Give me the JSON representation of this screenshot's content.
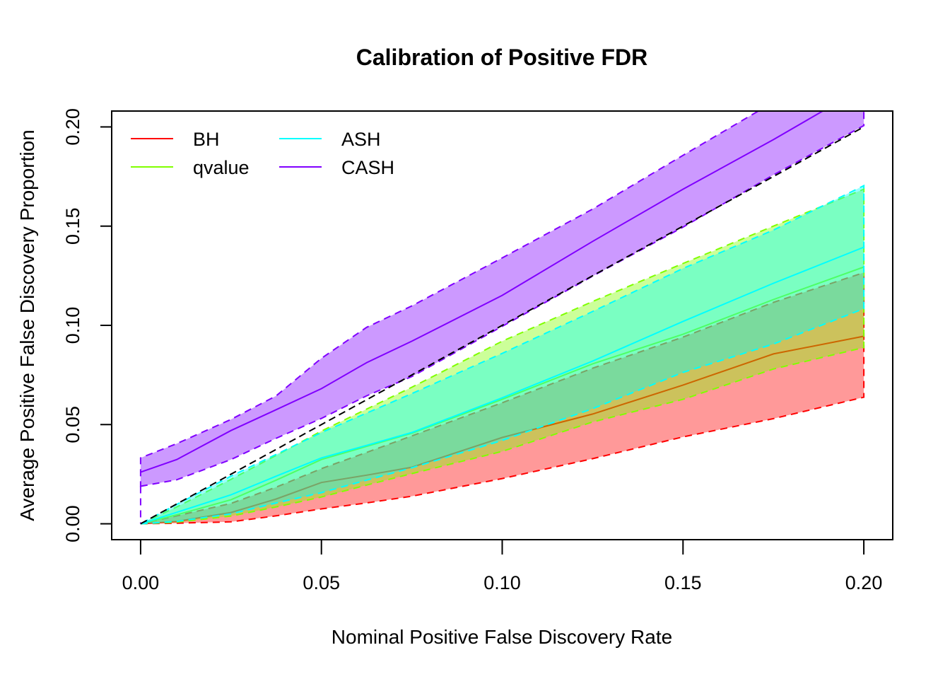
{
  "chart_data": {
    "type": "area",
    "title": "Calibration of Positive FDR",
    "xlabel": "Nominal Positive False Discovery Rate",
    "ylabel": "Average Positive False Discovery Proportion",
    "xlim": [
      -0.008,
      0.208
    ],
    "ylim": [
      -0.008,
      0.208
    ],
    "grid": false,
    "xticks": {
      "values": [
        0,
        0.05,
        0.1,
        0.15,
        0.2
      ],
      "labels": [
        "0.00",
        "0.05",
        "0.10",
        "0.15",
        "0.20"
      ]
    },
    "yticks": {
      "values": [
        0,
        0.05,
        0.1,
        0.15,
        0.2
      ],
      "labels": [
        "0.00",
        "0.05",
        "0.10",
        "0.15",
        "0.20"
      ]
    },
    "legend": {
      "position": "top-left",
      "columns": 2,
      "entries": [
        "BH",
        "qvalue",
        "ASH",
        "CASH"
      ]
    },
    "reference_line": {
      "slope": 1,
      "intercept": 0,
      "color": "#000000",
      "style": "dashed"
    },
    "x": [
      0,
      0.01,
      0.025,
      0.0375,
      0.05,
      0.0625,
      0.075,
      0.1,
      0.125,
      0.15,
      0.175,
      0.2
    ],
    "series": [
      {
        "name": "BH",
        "color": "#FF0000",
        "mean": [
          0,
          0.0012,
          0.0057,
          0.0125,
          0.0208,
          0.0245,
          0.0285,
          0.0435,
          0.0553,
          0.0699,
          0.0856,
          0.0945
        ],
        "lower": [
          0,
          0.0003,
          0.001,
          0.004,
          0.0075,
          0.0105,
          0.0139,
          0.0228,
          0.0328,
          0.0438,
          0.053,
          0.0638
        ],
        "upper": [
          0,
          0.004,
          0.0103,
          0.0185,
          0.0278,
          0.036,
          0.0443,
          0.061,
          0.0784,
          0.0941,
          0.1116,
          0.1266
        ]
      },
      {
        "name": "qvalue",
        "color": "#80FF00",
        "mean": [
          0,
          0.0045,
          0.0121,
          0.022,
          0.0324,
          0.039,
          0.0456,
          0.0627,
          0.0806,
          0.0955,
          0.113,
          0.1294
        ],
        "lower": [
          0,
          0.0008,
          0.0039,
          0.0085,
          0.0135,
          0.0195,
          0.0253,
          0.0365,
          0.0513,
          0.0627,
          0.078,
          0.0888
        ],
        "upper": [
          0,
          0.0085,
          0.0224,
          0.0345,
          0.0467,
          0.0578,
          0.0688,
          0.092,
          0.112,
          0.1312,
          0.15,
          0.1686
        ]
      },
      {
        "name": "ASH",
        "color": "#00FFFF",
        "mean": [
          0,
          0.0058,
          0.0146,
          0.024,
          0.0332,
          0.0395,
          0.046,
          0.0635,
          0.082,
          0.102,
          0.1212,
          0.1394
        ],
        "lower": [
          0,
          0.0012,
          0.005,
          0.0105,
          0.0157,
          0.022,
          0.0282,
          0.042,
          0.058,
          0.0763,
          0.0906,
          0.1084
        ],
        "upper": [
          0,
          0.0098,
          0.024,
          0.035,
          0.046,
          0.0558,
          0.0656,
          0.0859,
          0.107,
          0.1287,
          0.148,
          0.1704
        ]
      },
      {
        "name": "CASH",
        "color": "#8000FF",
        "mean": [
          0.026,
          0.0324,
          0.047,
          0.0575,
          0.0681,
          0.0812,
          0.092,
          0.1151,
          0.1423,
          0.1686,
          0.1936,
          0.22
        ],
        "lower": [
          0.0189,
          0.0222,
          0.0324,
          0.0431,
          0.0531,
          0.0645,
          0.0742,
          0.0995,
          0.1248,
          0.1495,
          0.1758,
          0.2007
        ],
        "upper": [
          0.0332,
          0.0404,
          0.0526,
          0.0645,
          0.0834,
          0.099,
          0.1098,
          0.134,
          0.1586,
          0.1857,
          0.2125,
          0.239
        ]
      }
    ]
  }
}
